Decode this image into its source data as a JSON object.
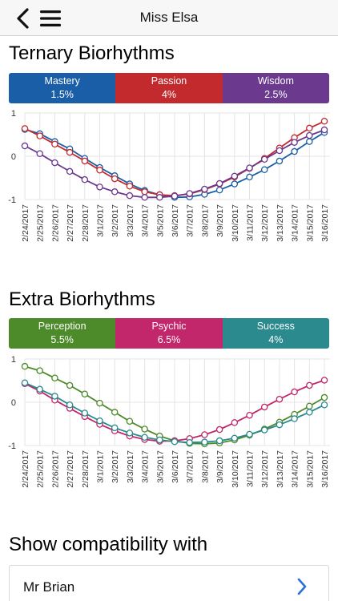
{
  "nav": {
    "title": "Miss Elsa"
  },
  "ternary": {
    "title": "Ternary Biorhythms",
    "segments": [
      {
        "label": "Mastery",
        "value": "1.5%",
        "color": "#1b5ea8"
      },
      {
        "label": "Passion",
        "value": "4%",
        "color": "#c32a2e"
      },
      {
        "label": "Wisdom",
        "value": "2.5%",
        "color": "#6b3a8e"
      }
    ],
    "chart_data": {
      "type": "line",
      "x": [
        "2/24/2017",
        "2/25/2017",
        "2/26/2017",
        "2/27/2017",
        "2/28/2017",
        "3/1/2017",
        "3/2/2017",
        "3/3/2017",
        "3/4/2017",
        "3/5/2017",
        "3/6/2017",
        "3/7/2017",
        "3/8/2017",
        "3/9/2017",
        "3/10/2017",
        "3/11/2017",
        "3/12/2017",
        "3/13/2017",
        "3/14/2017",
        "3/15/2017",
        "3/16/2017"
      ],
      "ylim": [
        -1,
        1
      ],
      "yticks": [
        "1",
        "0",
        "-1"
      ],
      "grid": true,
      "series": [
        {
          "color": "#1b5ea8",
          "values": [
            0.62,
            0.52,
            0.34,
            0.17,
            -0.05,
            -0.26,
            -0.45,
            -0.64,
            -0.79,
            -0.89,
            -0.95,
            -0.94,
            -0.88,
            -0.78,
            -0.64,
            -0.48,
            -0.31,
            -0.11,
            0.11,
            0.34,
            0.55
          ]
        },
        {
          "color": "#c32a2e",
          "values": [
            0.64,
            0.47,
            0.28,
            0.09,
            -0.11,
            -0.32,
            -0.52,
            -0.69,
            -0.82,
            -0.89,
            -0.91,
            -0.87,
            -0.77,
            -0.64,
            -0.48,
            -0.28,
            -0.05,
            0.19,
            0.43,
            0.65,
            0.81
          ]
        },
        {
          "color": "#6b3a8e",
          "values": [
            0.24,
            0.06,
            -0.15,
            -0.35,
            -0.54,
            -0.71,
            -0.82,
            -0.91,
            -0.95,
            -0.95,
            -0.92,
            -0.86,
            -0.76,
            -0.63,
            -0.46,
            -0.27,
            -0.07,
            0.13,
            0.32,
            0.48,
            0.61
          ]
        }
      ]
    }
  },
  "extra": {
    "title": "Extra Biorhythms",
    "segments": [
      {
        "label": "Perception",
        "value": "5.5%",
        "color": "#4d8a2a"
      },
      {
        "label": "Psychic",
        "value": "6.5%",
        "color": "#c2266b"
      },
      {
        "label": "Success",
        "value": "4%",
        "color": "#2a8a8e"
      }
    ],
    "chart_data": {
      "type": "line",
      "x": [
        "2/24/2017",
        "2/25/2017",
        "2/26/2017",
        "2/27/2017",
        "2/28/2017",
        "3/1/2017",
        "3/2/2017",
        "3/3/2017",
        "3/4/2017",
        "3/5/2017",
        "3/6/2017",
        "3/7/2017",
        "3/8/2017",
        "3/9/2017",
        "3/10/2017",
        "3/11/2017",
        "3/12/2017",
        "3/13/2017",
        "3/14/2017",
        "3/15/2017",
        "3/16/2017"
      ],
      "ylim": [
        -1,
        1
      ],
      "yticks": [
        "1",
        "0",
        "-1"
      ],
      "grid": true,
      "series": [
        {
          "color": "#4d8a2a",
          "values": [
            0.83,
            0.73,
            0.56,
            0.39,
            0.19,
            -0.02,
            -0.23,
            -0.44,
            -0.62,
            -0.78,
            -0.89,
            -0.95,
            -0.96,
            -0.94,
            -0.87,
            -0.76,
            -0.62,
            -0.46,
            -0.28,
            -0.09,
            0.11
          ]
        },
        {
          "color": "#c2266b",
          "values": [
            0.43,
            0.26,
            0.05,
            -0.14,
            -0.33,
            -0.51,
            -0.66,
            -0.78,
            -0.86,
            -0.9,
            -0.89,
            -0.84,
            -0.75,
            -0.63,
            -0.47,
            -0.3,
            -0.11,
            0.07,
            0.24,
            0.39,
            0.51
          ]
        },
        {
          "color": "#2a8a8e",
          "values": [
            0.45,
            0.3,
            0.14,
            -0.06,
            -0.25,
            -0.43,
            -0.59,
            -0.71,
            -0.81,
            -0.87,
            -0.91,
            -0.93,
            -0.92,
            -0.89,
            -0.83,
            -0.74,
            -0.64,
            -0.52,
            -0.38,
            -0.23,
            -0.06
          ]
        }
      ]
    }
  },
  "compatibility": {
    "title": "Show compatibility with",
    "person": "Mr Brian"
  },
  "icons": {
    "back": "chevron-left-icon",
    "menu": "hamburger-menu-icon",
    "next": "chevron-right-icon"
  },
  "accent": "#2e6fd8"
}
